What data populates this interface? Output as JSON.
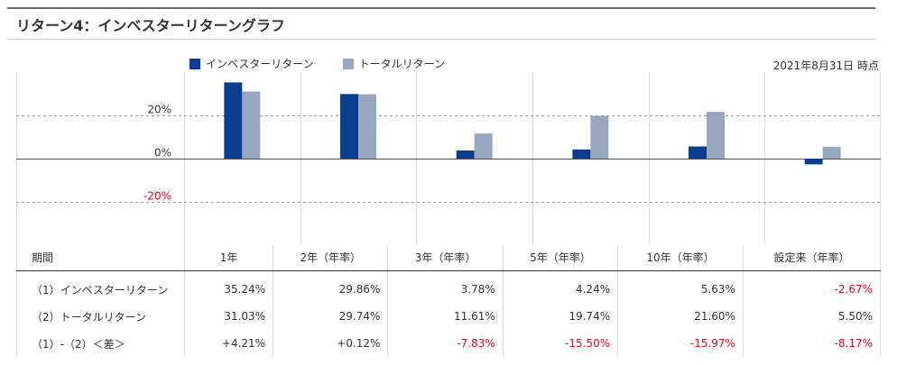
{
  "title": "リターン4：インベスターリターングラフ",
  "date_note": "2021年8月31日 時点",
  "colors": {
    "investor": "#0b3d91",
    "total": "#98a6c2",
    "negative": "#e60012"
  },
  "chart_data": {
    "type": "bar",
    "categories": [
      "1年",
      "2年（年率）",
      "3年（年率）",
      "5年（年率）",
      "10年（年率）",
      "設定来（年率）"
    ],
    "series": [
      {
        "name": "インベスターリターン",
        "values": [
          35.24,
          29.86,
          3.78,
          4.24,
          5.63,
          -2.67
        ]
      },
      {
        "name": "トータルリターン",
        "values": [
          31.03,
          29.74,
          11.61,
          19.74,
          21.6,
          5.5
        ]
      }
    ],
    "yticks": [
      "20%",
      "0%",
      "-20%"
    ],
    "ytick_values": [
      20,
      0,
      -20
    ],
    "ylim": [
      -40,
      40
    ],
    "grid": true,
    "legend_position": "top"
  },
  "table": {
    "header_label": "期間",
    "rows": [
      {
        "label": "（1）インベスターリターン",
        "cells": [
          "35.24%",
          "29.86%",
          "3.78%",
          "4.24%",
          "5.63%",
          "-2.67%"
        ]
      },
      {
        "label": "（2）トータルリターン",
        "cells": [
          "31.03%",
          "29.74%",
          "11.61%",
          "19.74%",
          "21.60%",
          "5.50%"
        ]
      },
      {
        "label": "（1）-（2）＜差＞",
        "cells": [
          "+4.21%",
          "+0.12%",
          "-7.83%",
          "-15.50%",
          "-15.97%",
          "-8.17%"
        ]
      }
    ]
  }
}
